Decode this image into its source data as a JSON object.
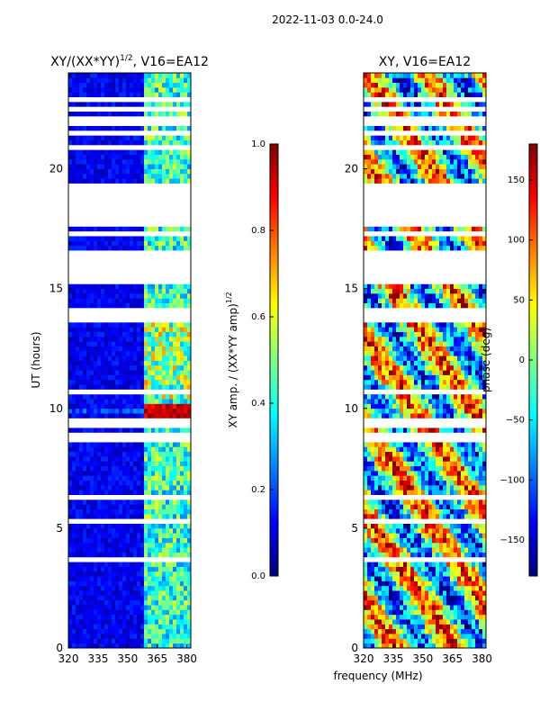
{
  "suptitle": "2022-11-03 0.0-24.0",
  "shared_xlabel": "frequency (MHz)",
  "colors": {
    "colormap": [
      "#000080",
      "#0000ff",
      "#0080ff",
      "#00ffff",
      "#80ff80",
      "#ffff00",
      "#ff8000",
      "#ff0000",
      "#800000"
    ],
    "gap": "#ffffff",
    "axes": "#000000"
  },
  "chart_data": [
    {
      "type": "heatmap",
      "title_main": "XY/(XX*YY)",
      "title_sup": "1/2",
      "title_rest": ", V16=EA12",
      "ylabel": "UT (hours)",
      "xlabel": "",
      "x_range": [
        320,
        382
      ],
      "y_range": [
        0,
        24
      ],
      "xticks": [
        320,
        335,
        350,
        365,
        380
      ],
      "yticks": [
        0,
        5,
        10,
        15,
        20
      ],
      "colorbar": {
        "label_main": "XY amp. / (XX*YY amp)",
        "label_sup": "1/2",
        "range": [
          0.0,
          1.0
        ],
        "ticks": [
          0.0,
          0.2,
          0.4,
          0.6,
          0.8,
          1.0
        ],
        "tick_labels": [
          "0.0",
          "0.2",
          "0.4",
          "0.6",
          "0.8",
          "1.0"
        ]
      },
      "data_gaps_hours": [
        [
          21.8,
          22.2
        ],
        [
          20.9,
          21.1
        ],
        [
          17.6,
          19.4
        ],
        [
          15.2,
          16.5
        ],
        [
          13.7,
          13.9
        ],
        [
          9.3,
          9.6
        ],
        [
          5.2,
          5.45
        ]
      ],
      "notes": "Mostly low amplitude (~0.0-0.2) below 358 MHz; bright channels 362-380 MHz reach ~0.5-0.7, peaking ~0.9-1.0 near 9.7-10.1 UT"
    },
    {
      "type": "heatmap",
      "title": "XY, V16=EA12",
      "ylabel": "",
      "xlabel": "frequency (MHz)",
      "x_range": [
        320,
        382
      ],
      "y_range": [
        0,
        24
      ],
      "xticks": [
        320,
        335,
        350,
        365,
        380
      ],
      "yticks": [
        0,
        5,
        10,
        15,
        20
      ],
      "colorbar": {
        "label": "phase (deg)",
        "range": [
          -180,
          180
        ],
        "ticks": [
          150,
          100,
          50,
          0,
          -50,
          -100,
          -150
        ],
        "tick_labels": [
          "150",
          "100",
          "50",
          "0",
          "−50",
          "−100",
          "−150"
        ]
      },
      "data_gaps_hours": [
        [
          21.8,
          22.2
        ],
        [
          20.9,
          21.1
        ],
        [
          17.6,
          19.4
        ],
        [
          15.2,
          16.5
        ],
        [
          13.7,
          13.9
        ],
        [
          9.3,
          9.6
        ],
        [
          5.2,
          5.45
        ]
      ],
      "notes": "Phase values span the full -180 to 180 deg range with noisy structure"
    }
  ]
}
